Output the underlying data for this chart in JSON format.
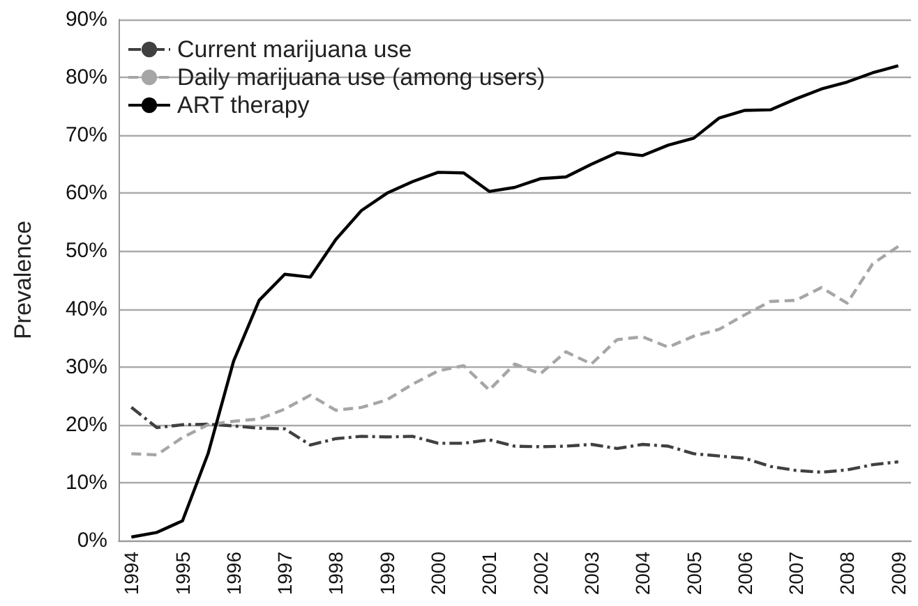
{
  "chart_data": {
    "type": "line",
    "ylabel": "Prevalence",
    "categories": [
      "1994",
      null,
      "1995",
      null,
      "1996",
      null,
      "1997",
      null,
      "1998",
      null,
      "1999",
      null,
      "2000",
      null,
      "2001",
      null,
      "2002",
      null,
      "2003",
      null,
      "2004",
      null,
      "2005",
      null,
      "2006",
      null,
      "2007",
      null,
      "2008",
      null,
      "2009"
    ],
    "series": [
      {
        "name": "Current marijuana use",
        "color": "#404040",
        "line_style": "dashdot",
        "values": [
          23,
          19.5,
          20,
          20.1,
          19.8,
          19.4,
          19.3,
          16.5,
          17.6,
          18,
          17.9,
          18,
          16.8,
          16.8,
          17.4,
          16.3,
          16.2,
          16.3,
          16.6,
          15.9,
          16.6,
          16.3,
          15,
          14.6,
          14.2,
          12.8,
          12.1,
          11.8,
          12.2,
          13.1,
          13.6
        ]
      },
      {
        "name": "Daily marijuana use (among users)",
        "color": "#a6a6a6",
        "line_style": "dashed",
        "values": [
          15,
          14.8,
          17.8,
          20,
          20.6,
          21,
          22.7,
          25.1,
          22.5,
          23,
          24.3,
          27,
          29.3,
          30.2,
          26,
          30.5,
          28.8,
          32.6,
          30.5,
          34.7,
          35.2,
          33.4,
          35.3,
          36.5,
          39,
          41.3,
          41.5,
          43.7,
          41,
          47.8,
          50.8
        ]
      },
      {
        "name": "ART therapy",
        "color": "#000000",
        "line_style": "solid",
        "values": [
          0.6,
          1.4,
          3.4,
          15,
          31,
          41.5,
          46,
          45.5,
          52,
          57,
          60,
          62,
          63.6,
          63.5,
          60.3,
          61,
          62.5,
          62.8,
          65,
          67,
          66.5,
          68.3,
          69.5,
          73,
          74.3,
          74.4,
          76.3,
          78,
          79.2,
          80.8,
          82
        ]
      }
    ],
    "ylim": [
      0,
      90
    ],
    "yticks": [
      {
        "value": 0,
        "label": "0%"
      },
      {
        "value": 10,
        "label": "10%"
      },
      {
        "value": 20,
        "label": "20%"
      },
      {
        "value": 30,
        "label": "30%"
      },
      {
        "value": 40,
        "label": "40%"
      },
      {
        "value": 50,
        "label": "50%"
      },
      {
        "value": 60,
        "label": "60%"
      },
      {
        "value": 70,
        "label": "70%"
      },
      {
        "value": 80,
        "label": "80%"
      },
      {
        "value": 90,
        "label": "90%"
      }
    ],
    "grid": "y",
    "legend": "top left",
    "marker": "none"
  }
}
